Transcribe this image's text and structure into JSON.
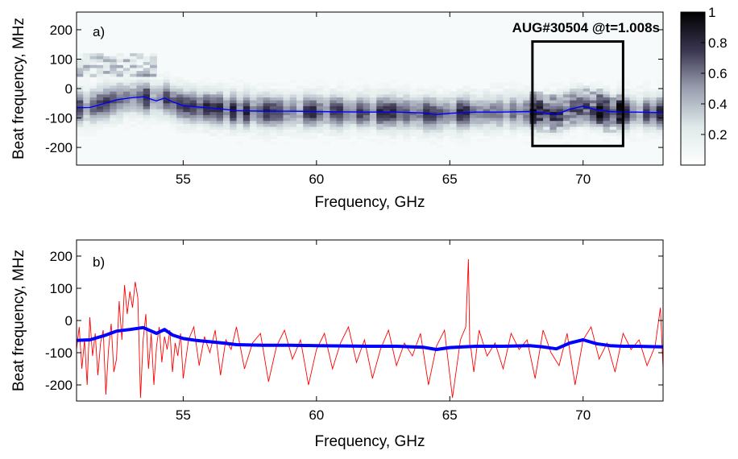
{
  "chart_data": [
    {
      "type": "heatmap",
      "panel_label": "a)",
      "annotation": "AUG#30504 @t=1.008s",
      "xlabel": "Frequency, GHz",
      "ylabel": "Beat frequency, MHz",
      "xlim": [
        51,
        73
      ],
      "ylim": [
        -260,
        260
      ],
      "xticks": [
        55,
        60,
        65,
        70
      ],
      "yticks": [
        200,
        100,
        0,
        -100,
        -200
      ],
      "xtick_labels": [
        "55",
        "60",
        "65",
        "70"
      ],
      "ytick_labels": [
        "200",
        "100",
        "0",
        "-100",
        "-200"
      ],
      "grid": false,
      "colorbar": {
        "range": [
          0,
          1
        ],
        "ticks": [
          1,
          0.8,
          0.6,
          0.4,
          0.2
        ],
        "tick_labels": [
          "1",
          "0.8",
          "0.6",
          "0.4",
          "0.2"
        ],
        "colormap": [
          "#ffffff",
          "#dfe9e9",
          "#9a9fb0",
          "#3a3550",
          "#000000"
        ]
      },
      "highlight_box": {
        "x_range": [
          68.1,
          71.5
        ],
        "y_range": [
          -195,
          160
        ],
        "color": "#000000"
      },
      "line_series": {
        "name": "",
        "color": "#0000ff",
        "x": [
          51,
          51.5,
          52,
          52.5,
          53,
          53.5,
          54,
          54.3,
          54.6,
          55,
          55.5,
          56,
          56.5,
          57,
          58,
          59,
          60,
          61,
          62,
          63,
          64,
          64.5,
          65,
          65.5,
          66,
          67,
          68,
          68.5,
          69,
          69.5,
          70,
          70.5,
          71,
          71.5,
          72,
          73
        ],
        "y": [
          -65,
          -64,
          -52,
          -38,
          -32,
          -28,
          -42,
          -32,
          -45,
          -58,
          -62,
          -66,
          -70,
          -75,
          -77,
          -77,
          -78,
          -79,
          -80,
          -80,
          -83,
          -88,
          -84,
          -82,
          -80,
          -80,
          -78,
          -82,
          -88,
          -70,
          -60,
          -72,
          -78,
          -80,
          -80,
          -82
        ]
      }
    },
    {
      "type": "line",
      "panel_label": "b)",
      "xlabel": "Frequency, GHz",
      "ylabel": "Beat frequency, MHz",
      "xlim": [
        51,
        73
      ],
      "ylim": [
        -250,
        250
      ],
      "xticks": [
        55,
        60,
        65,
        70
      ],
      "yticks": [
        200,
        100,
        0,
        -100,
        -200
      ],
      "xtick_labels": [
        "55",
        "60",
        "65",
        "70"
      ],
      "ytick_labels": [
        "200",
        "100",
        "0",
        "-100",
        "-200"
      ],
      "grid": false,
      "series": [
        {
          "name": "",
          "color": "#ff0000",
          "x": [
            51.0,
            51.1,
            51.2,
            51.3,
            51.4,
            51.5,
            51.6,
            51.7,
            51.8,
            51.9,
            52.0,
            52.1,
            52.2,
            52.3,
            52.4,
            52.5,
            52.6,
            52.7,
            52.8,
            52.9,
            53.0,
            53.1,
            53.2,
            53.3,
            53.4,
            53.5,
            53.6,
            53.7,
            53.8,
            53.9,
            54.0,
            54.1,
            54.2,
            54.3,
            54.4,
            54.5,
            54.6,
            54.7,
            54.8,
            54.9,
            55.0,
            55.2,
            55.4,
            55.6,
            55.8,
            56.0,
            56.2,
            56.4,
            56.6,
            56.8,
            57.0,
            57.3,
            57.6,
            57.9,
            58.2,
            58.5,
            58.8,
            59.1,
            59.4,
            59.7,
            60.0,
            60.3,
            60.6,
            60.9,
            61.2,
            61.5,
            61.8,
            62.1,
            62.4,
            62.7,
            63.0,
            63.3,
            63.6,
            63.9,
            64.2,
            64.5,
            64.8,
            65.1,
            65.4,
            65.6,
            65.7,
            65.75,
            65.8,
            65.9,
            66.1,
            66.4,
            66.7,
            67.0,
            67.3,
            67.6,
            67.9,
            68.2,
            68.5,
            68.8,
            69.1,
            69.4,
            69.7,
            70.0,
            70.3,
            70.6,
            70.9,
            71.2,
            71.5,
            71.8,
            72.1,
            72.4,
            72.7,
            72.9,
            73.0
          ],
          "y": [
            -90,
            -20,
            -150,
            -60,
            -200,
            10,
            -110,
            -40,
            -170,
            -70,
            -30,
            -230,
            -90,
            -10,
            -160,
            -120,
            60,
            -60,
            110,
            20,
            90,
            40,
            120,
            70,
            -240,
            -60,
            20,
            -150,
            -40,
            -200,
            -80,
            -20,
            -130,
            -50,
            -90,
            -30,
            -160,
            -70,
            -110,
            -40,
            -180,
            -60,
            -20,
            -140,
            -50,
            -100,
            -30,
            -170,
            -60,
            -90,
            -20,
            -150,
            -70,
            -40,
            -190,
            -80,
            -30,
            -120,
            -60,
            -200,
            -90,
            -40,
            -150,
            -70,
            -20,
            -130,
            -60,
            -180,
            -90,
            -30,
            -140,
            -70,
            -110,
            -40,
            -200,
            -80,
            -30,
            -240,
            -60,
            -20,
            190,
            -80,
            -90,
            -160,
            -30,
            -110,
            -70,
            -150,
            -40,
            -90,
            -60,
            -180,
            -30,
            -100,
            -140,
            -40,
            -200,
            -60,
            -20,
            -120,
            -70,
            -160,
            -40,
            -90,
            -60,
            -140,
            -80,
            40,
            -150
          ]
        },
        {
          "name": "",
          "color": "#0000ff",
          "x": [
            51,
            51.5,
            52,
            52.5,
            53,
            53.5,
            54,
            54.3,
            54.6,
            55,
            55.5,
            56,
            56.5,
            57,
            58,
            59,
            60,
            61,
            62,
            63,
            64,
            64.5,
            65,
            65.5,
            66,
            67,
            68,
            68.5,
            69,
            69.5,
            70,
            70.5,
            71,
            71.5,
            72,
            73
          ],
          "y": [
            -62,
            -60,
            -48,
            -33,
            -28,
            -22,
            -40,
            -28,
            -45,
            -56,
            -62,
            -66,
            -70,
            -75,
            -77,
            -77,
            -78,
            -79,
            -80,
            -80,
            -83,
            -90,
            -84,
            -82,
            -80,
            -80,
            -78,
            -82,
            -88,
            -70,
            -60,
            -72,
            -78,
            -80,
            -80,
            -82
          ]
        }
      ]
    }
  ]
}
